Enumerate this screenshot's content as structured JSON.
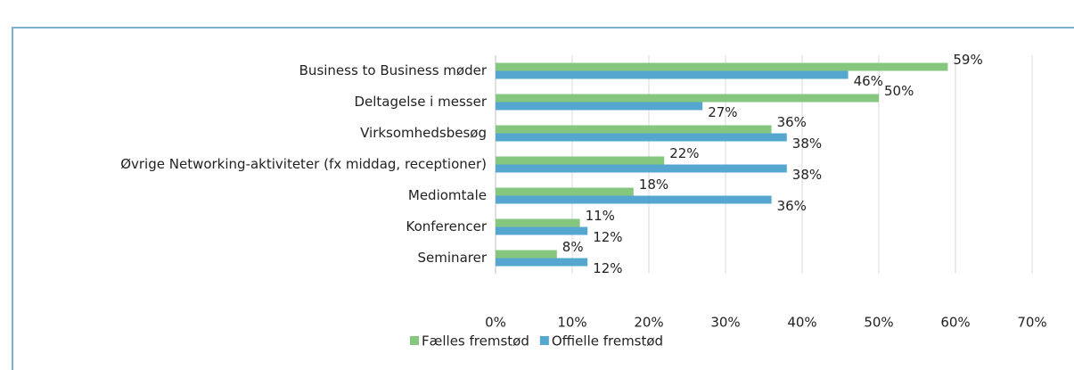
{
  "chart_data": {
    "type": "hbar",
    "categories": [
      "Business to Business møder",
      "Deltagelse i messer",
      "Virksomhedsbesøg",
      "Øvrige Networking-aktiviteter (fx middag, receptioner)",
      "Mediomtale",
      "Konferencer",
      "Seminarer"
    ],
    "series": [
      {
        "name": "Fælles fremstød",
        "color": "#86c77f",
        "values": [
          59,
          50,
          36,
          22,
          18,
          11,
          8
        ],
        "value_labels": [
          "59%",
          "50%",
          "36%",
          "22%",
          "18%",
          "11%",
          "8%"
        ]
      },
      {
        "name": "Offielle fremstød",
        "color": "#55a7cf",
        "values": [
          46,
          27,
          38,
          38,
          36,
          12,
          12
        ],
        "value_labels": [
          "46%",
          "27%",
          "38%",
          "38%",
          "36%",
          "12%",
          "12%"
        ]
      }
    ],
    "xlim": [
      0,
      70
    ],
    "xticks": [
      {
        "value": 0,
        "label": "0%"
      },
      {
        "value": 10,
        "label": "10%"
      },
      {
        "value": 20,
        "label": "20%"
      },
      {
        "value": 30,
        "label": "30%"
      },
      {
        "value": 40,
        "label": "40%"
      },
      {
        "value": 50,
        "label": "50%"
      },
      {
        "value": 60,
        "label": "60%"
      },
      {
        "value": 70,
        "label": "70%"
      }
    ],
    "grid": true,
    "legend": "bottom"
  }
}
